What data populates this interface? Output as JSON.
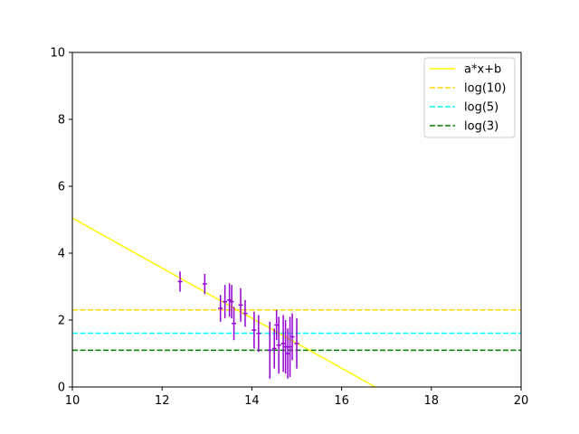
{
  "chart_data": {
    "type": "scatter",
    "title": "",
    "xlabel": "",
    "ylabel": "",
    "xlim": [
      10,
      20
    ],
    "ylim": [
      0,
      10
    ],
    "xticks": [
      "10",
      "12",
      "14",
      "16",
      "18",
      "20"
    ],
    "yticks": [
      "0",
      "2",
      "4",
      "6",
      "8",
      "10"
    ],
    "grid": false,
    "legend_position": "top-right",
    "fit_line": {
      "name": "a*x+b",
      "color": "#ffff00",
      "x": [
        10,
        16.75
      ],
      "y": [
        5.05,
        0
      ]
    },
    "hlines": [
      {
        "name": "log(10)",
        "y": 2.3026,
        "color": "#ffd700"
      },
      {
        "name": "log(5)",
        "y": 1.6094,
        "color": "#00ffff"
      },
      {
        "name": "log(3)",
        "y": 1.0986,
        "color": "#008000"
      }
    ],
    "points": {
      "color": "#9400d3",
      "x_err": 0.05,
      "x": [
        12.4,
        12.95,
        13.3,
        13.4,
        13.5,
        13.55,
        13.6,
        13.75,
        13.85,
        14.05,
        14.15,
        14.4,
        14.5,
        14.55,
        14.6,
        14.7,
        14.75,
        14.8,
        14.85,
        14.9,
        15.0
      ],
      "y": [
        3.15,
        3.08,
        2.35,
        2.55,
        2.6,
        2.55,
        1.9,
        2.45,
        2.2,
        1.7,
        1.6,
        1.1,
        1.15,
        1.85,
        1.25,
        1.3,
        1.2,
        1.0,
        1.2,
        1.5,
        1.3
      ],
      "err": [
        0.3,
        0.3,
        0.4,
        0.5,
        0.5,
        0.5,
        0.5,
        0.5,
        0.4,
        0.55,
        0.55,
        0.85,
        0.6,
        0.45,
        0.85,
        0.85,
        0.8,
        0.75,
        0.9,
        0.7,
        0.75
      ]
    }
  }
}
